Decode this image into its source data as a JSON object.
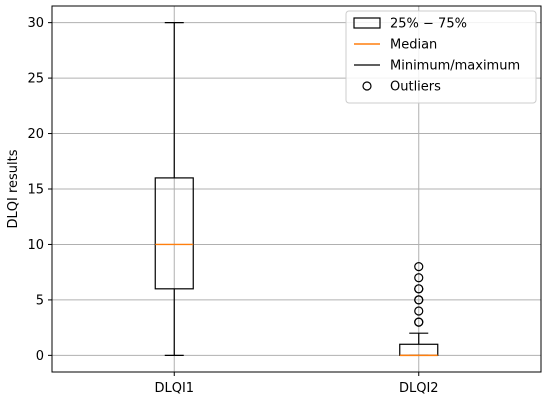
{
  "chart_data": {
    "type": "boxplot",
    "ylabel": "DLQI results",
    "ylim": [
      -1.5,
      31.5
    ],
    "yticks": [
      0,
      5,
      10,
      15,
      20,
      25,
      30
    ],
    "grid": true,
    "legend_position": "top-right",
    "categories": [
      "DLQI1",
      "DLQI2"
    ],
    "boxes": [
      {
        "label": "DLQI1",
        "whisker_low": 0,
        "q1": 6,
        "median": 10,
        "q3": 16,
        "whisker_high": 30,
        "outliers": []
      },
      {
        "label": "DLQI2",
        "whisker_low": 0,
        "q1": 0,
        "median": 0,
        "q3": 1,
        "whisker_high": 2,
        "outliers": [
          3,
          3,
          4,
          5,
          5,
          6,
          6,
          7,
          8
        ]
      }
    ],
    "legend": [
      {
        "kind": "box",
        "label": "25% − 75%"
      },
      {
        "kind": "median",
        "label": "Median"
      },
      {
        "kind": "whisker",
        "label": "Minimum/maximum"
      },
      {
        "kind": "outlier",
        "label": "Outliers"
      }
    ],
    "colors": {
      "box": "#000000",
      "median": "#ff7f0e",
      "grid": "#b0b0b0",
      "outlier": "#000000"
    }
  }
}
